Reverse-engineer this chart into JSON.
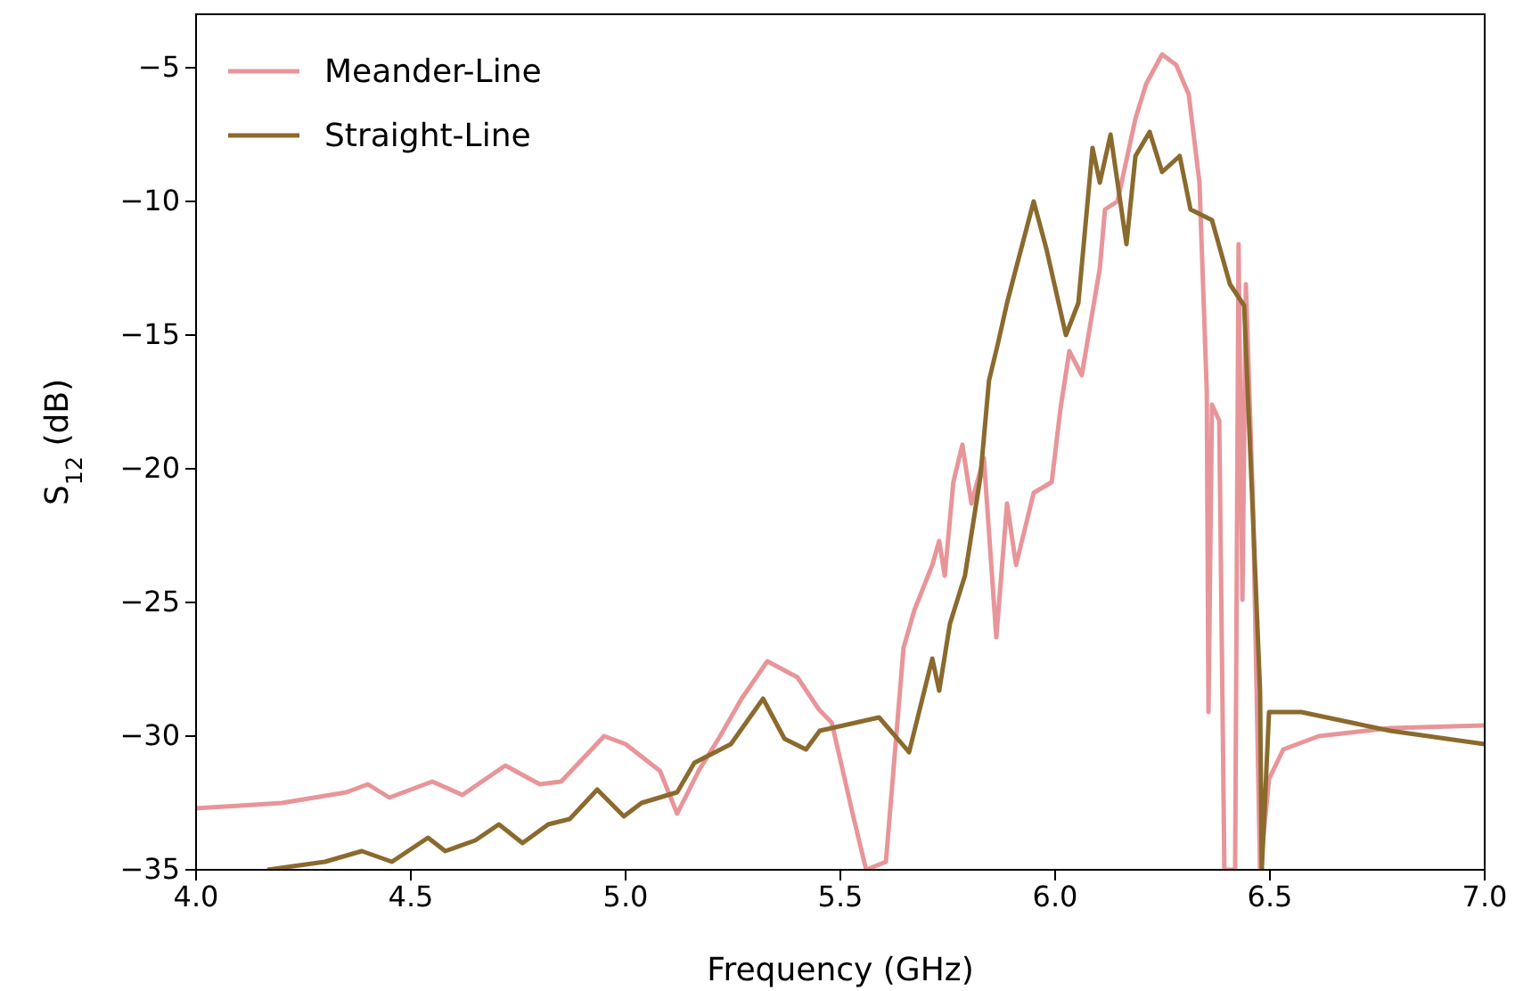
{
  "chart_data": {
    "type": "line",
    "xlabel": "Frequency (GHz)",
    "ylabel": "S$_{12}$ (dB)",
    "xlim": [
      4,
      7
    ],
    "ylim": [
      -35,
      -3
    ],
    "xticks": [
      {
        "value": 4,
        "label": "4.0"
      },
      {
        "value": 4.5,
        "label": "4.5"
      },
      {
        "value": 5,
        "label": "5.0"
      },
      {
        "value": 5.5,
        "label": "5.5"
      },
      {
        "value": 6,
        "label": "6.0"
      },
      {
        "value": 6.5,
        "label": "6.5"
      },
      {
        "value": 7,
        "label": "7.0"
      }
    ],
    "yticks": [
      {
        "value": -35,
        "label": "−35"
      },
      {
        "value": -30,
        "label": "−30"
      },
      {
        "value": -25,
        "label": "−25"
      },
      {
        "value": -20,
        "label": "−20"
      },
      {
        "value": -15,
        "label": "−15"
      },
      {
        "value": -10,
        "label": "−10"
      },
      {
        "value": -5,
        "label": "−5"
      }
    ],
    "grid": false,
    "legend": "top left",
    "marker": "none",
    "line_style": "solid",
    "series": [
      {
        "name": "Meander-Line",
        "color": "#e8959a",
        "x": [
          4.0,
          4.2,
          4.35,
          4.4,
          4.45,
          4.55,
          4.62,
          4.72,
          4.8,
          4.85,
          4.95,
          5.0,
          5.08,
          5.12,
          5.17,
          5.22,
          5.27,
          5.33,
          5.4,
          5.45,
          5.48,
          5.53,
          5.56,
          5.606,
          5.647,
          5.672,
          5.714,
          5.73,
          5.743,
          5.763,
          5.784,
          5.805,
          5.834,
          5.863,
          5.888,
          5.909,
          5.95,
          5.992,
          6.012,
          6.033,
          6.062,
          6.104,
          6.116,
          6.145,
          6.187,
          6.212,
          6.249,
          6.282,
          6.311,
          6.336,
          6.353,
          6.357,
          6.365,
          6.382,
          6.394,
          6.419,
          6.427,
          6.436,
          6.444,
          6.461,
          6.477,
          6.498,
          6.531,
          6.614,
          6.78,
          7.0
        ],
        "values": [
          -32.7,
          -32.5,
          -32.1,
          -31.8,
          -32.3,
          -31.7,
          -32.2,
          -31.1,
          -31.8,
          -31.7,
          -30.0,
          -30.3,
          -31.3,
          -32.9,
          -31.3,
          -30.0,
          -28.6,
          -27.2,
          -27.8,
          -29.0,
          -29.5,
          -33.0,
          -35,
          -34.7,
          -26.7,
          -25.3,
          -23.6,
          -22.7,
          -24.0,
          -20.5,
          -19.1,
          -21.3,
          -19.6,
          -26.3,
          -21.3,
          -23.6,
          -20.9,
          -20.5,
          -17.8,
          -15.6,
          -16.5,
          -12.5,
          -10.3,
          -10.0,
          -6.9,
          -5.6,
          -4.5,
          -4.9,
          -6.0,
          -9.3,
          -17.1,
          -29.1,
          -17.6,
          -18.2,
          -35,
          -35,
          -11.6,
          -24.9,
          -13.1,
          -21.6,
          -35,
          -31.6,
          -30.5,
          -30.0,
          -29.7,
          -29.6
        ]
      },
      {
        "name": "Straight-Line",
        "color": "#8b6a2e",
        "x": [
          4.166,
          4.3,
          4.386,
          4.456,
          4.54,
          4.58,
          4.65,
          4.705,
          4.76,
          4.82,
          4.87,
          4.934,
          4.996,
          5.037,
          5.12,
          5.16,
          5.245,
          5.32,
          5.37,
          5.42,
          5.452,
          5.59,
          5.66,
          5.714,
          5.73,
          5.755,
          5.79,
          5.826,
          5.846,
          5.867,
          5.888,
          5.909,
          5.95,
          5.98,
          6.025,
          6.054,
          6.087,
          6.104,
          6.129,
          6.166,
          6.187,
          6.22,
          6.249,
          6.29,
          6.315,
          6.365,
          6.407,
          6.44,
          6.46,
          6.477,
          6.481,
          6.498,
          6.573,
          6.78,
          7.0
        ],
        "values": [
          -35,
          -34.7,
          -34.3,
          -34.7,
          -33.8,
          -34.3,
          -33.9,
          -33.3,
          -34.0,
          -33.3,
          -33.1,
          -32.0,
          -33.0,
          -32.5,
          -32.1,
          -31.0,
          -30.3,
          -28.6,
          -30.1,
          -30.5,
          -29.8,
          -29.3,
          -30.6,
          -27.1,
          -28.3,
          -25.8,
          -24.0,
          -20.3,
          -16.7,
          -15.3,
          -13.8,
          -12.5,
          -10.0,
          -11.8,
          -15.0,
          -13.8,
          -8.0,
          -9.3,
          -7.5,
          -11.6,
          -8.3,
          -7.4,
          -8.9,
          -8.3,
          -10.3,
          -10.7,
          -13.1,
          -13.9,
          -21.6,
          -28.3,
          -35,
          -29.1,
          -29.1,
          -29.8,
          -30.3
        ]
      }
    ]
  }
}
